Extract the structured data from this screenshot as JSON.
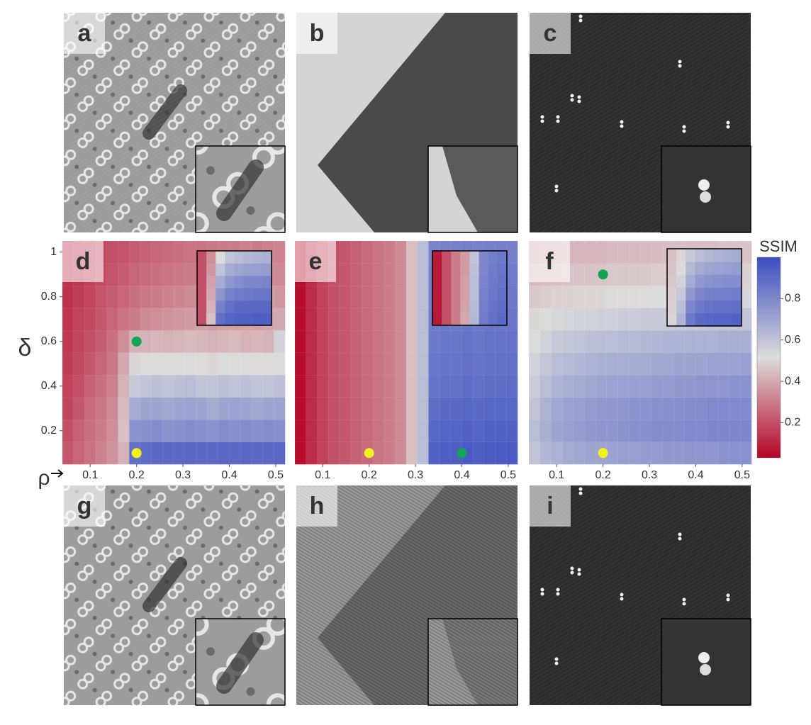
{
  "image_panels": [
    {
      "label": "a"
    },
    {
      "label": "b"
    },
    {
      "label": "c"
    },
    {
      "label": "g"
    },
    {
      "label": "h"
    },
    {
      "label": "i"
    }
  ],
  "colorbar": {
    "title": "SSIM",
    "clim": [
      0.03,
      1.0
    ],
    "ticks": [
      0.2,
      0.4,
      0.6,
      0.8
    ],
    "colormap": [
      "#b40426",
      "#dddcdc",
      "#3b4cc0"
    ]
  },
  "chart_data": [
    {
      "type": "heatmap",
      "label": "d",
      "ylabel": "δ",
      "xlabel": "ρ",
      "xlim": [
        0.04,
        0.52
      ],
      "ylim": [
        0.05,
        1.05
      ],
      "xticks": [
        0.1,
        0.2,
        0.3,
        0.4,
        0.5
      ],
      "yticks": [
        0.2,
        0.4,
        0.6,
        0.8,
        1
      ],
      "x": [
        0.052,
        0.076,
        0.1,
        0.124,
        0.148,
        0.172,
        0.196,
        0.22,
        0.244,
        0.268,
        0.292,
        0.316,
        0.34,
        0.364,
        0.388,
        0.412,
        0.436,
        0.46,
        0.484,
        0.508
      ],
      "y": [
        0.1,
        0.2,
        0.3,
        0.4,
        0.5,
        0.6,
        0.7,
        0.8,
        0.9,
        1.0
      ],
      "z": [
        [
          0.22,
          0.25,
          0.28,
          0.31,
          0.35,
          0.42,
          0.88,
          0.89,
          0.9,
          0.9,
          0.9,
          0.91,
          0.9,
          0.9,
          0.91,
          0.9,
          0.91,
          0.9,
          0.9,
          0.91
        ],
        [
          0.2,
          0.24,
          0.27,
          0.3,
          0.34,
          0.45,
          0.76,
          0.77,
          0.78,
          0.76,
          0.77,
          0.78,
          0.77,
          0.76,
          0.78,
          0.77,
          0.78,
          0.77,
          0.78,
          0.77
        ],
        [
          0.18,
          0.22,
          0.26,
          0.29,
          0.33,
          0.44,
          0.68,
          0.7,
          0.7,
          0.69,
          0.7,
          0.71,
          0.7,
          0.68,
          0.7,
          0.71,
          0.7,
          0.69,
          0.7,
          0.7
        ],
        [
          0.17,
          0.2,
          0.24,
          0.27,
          0.31,
          0.42,
          0.58,
          0.6,
          0.61,
          0.6,
          0.61,
          0.62,
          0.6,
          0.6,
          0.61,
          0.6,
          0.61,
          0.6,
          0.6,
          0.61
        ],
        [
          0.16,
          0.19,
          0.22,
          0.25,
          0.29,
          0.4,
          0.5,
          0.51,
          0.52,
          0.51,
          0.52,
          0.52,
          0.51,
          0.5,
          0.52,
          0.51,
          0.52,
          0.51,
          0.51,
          0.52
        ],
        [
          0.15,
          0.18,
          0.2,
          0.23,
          0.27,
          0.34,
          0.42,
          0.42,
          0.43,
          0.42,
          0.43,
          0.44,
          0.43,
          0.42,
          0.43,
          0.44,
          0.42,
          0.43,
          0.42,
          0.55
        ],
        [
          0.14,
          0.17,
          0.19,
          0.22,
          0.25,
          0.28,
          0.3,
          0.33,
          0.34,
          0.35,
          0.36,
          0.37,
          0.38,
          0.37,
          0.38,
          0.38,
          0.39,
          0.38,
          0.39,
          0.4
        ],
        [
          0.13,
          0.16,
          0.18,
          0.21,
          0.23,
          0.25,
          0.27,
          0.29,
          0.3,
          0.31,
          0.32,
          0.33,
          0.34,
          0.33,
          0.35,
          0.36,
          0.35,
          0.36,
          0.37,
          0.36
        ],
        [
          0.13,
          0.15,
          0.17,
          0.19,
          0.21,
          0.23,
          0.25,
          0.26,
          0.27,
          0.28,
          0.29,
          0.3,
          0.31,
          0.3,
          0.31,
          0.32,
          0.33,
          0.32,
          0.33,
          0.33
        ],
        [
          0.12,
          0.14,
          0.16,
          0.18,
          0.2,
          0.21,
          0.23,
          0.24,
          0.25,
          0.26,
          0.27,
          0.28,
          0.28,
          0.29,
          0.3,
          0.3,
          0.31,
          0.3,
          0.31,
          0.32
        ]
      ],
      "inset_z": [
        [
          0.2,
          0.45,
          0.88,
          0.92,
          0.93,
          0.93,
          0.94,
          0.94
        ],
        [
          0.2,
          0.42,
          0.82,
          0.88,
          0.9,
          0.9,
          0.91,
          0.91
        ],
        [
          0.2,
          0.4,
          0.75,
          0.82,
          0.84,
          0.85,
          0.86,
          0.86
        ],
        [
          0.2,
          0.38,
          0.68,
          0.75,
          0.78,
          0.8,
          0.8,
          0.81
        ],
        [
          0.2,
          0.36,
          0.6,
          0.68,
          0.7,
          0.72,
          0.72,
          0.73
        ],
        [
          0.2,
          0.34,
          0.52,
          0.6,
          0.62,
          0.64,
          0.65,
          0.66
        ]
      ],
      "markers": [
        {
          "x": 0.2,
          "y": 0.6,
          "color": "#13a555"
        },
        {
          "x": 0.2,
          "y": 0.1,
          "color": "#f4f01a"
        }
      ]
    },
    {
      "type": "heatmap",
      "label": "e",
      "xlim": [
        0.04,
        0.52
      ],
      "ylim": [
        0.05,
        1.05
      ],
      "xticks": [
        0.1,
        0.2,
        0.3,
        0.4,
        0.5
      ],
      "x": [
        0.052,
        0.076,
        0.1,
        0.124,
        0.148,
        0.172,
        0.196,
        0.22,
        0.244,
        0.268,
        0.292,
        0.316,
        0.34,
        0.364,
        0.388,
        0.412,
        0.436,
        0.46,
        0.484,
        0.508
      ],
      "y": [
        0.1,
        0.2,
        0.3,
        0.4,
        0.5,
        0.6,
        0.7,
        0.8,
        0.9,
        1.0
      ],
      "z": [
        [
          0.05,
          0.12,
          0.17,
          0.2,
          0.22,
          0.24,
          0.26,
          0.28,
          0.3,
          0.33,
          0.45,
          0.62,
          0.93,
          0.94,
          0.94,
          0.95,
          0.94,
          0.95,
          0.95,
          0.95
        ],
        [
          0.05,
          0.12,
          0.17,
          0.2,
          0.22,
          0.24,
          0.26,
          0.28,
          0.3,
          0.33,
          0.45,
          0.62,
          0.91,
          0.92,
          0.92,
          0.93,
          0.92,
          0.93,
          0.93,
          0.93
        ],
        [
          0.05,
          0.12,
          0.17,
          0.2,
          0.22,
          0.24,
          0.26,
          0.28,
          0.3,
          0.33,
          0.45,
          0.62,
          0.89,
          0.9,
          0.9,
          0.91,
          0.9,
          0.91,
          0.91,
          0.91
        ],
        [
          0.05,
          0.12,
          0.17,
          0.2,
          0.22,
          0.24,
          0.26,
          0.28,
          0.3,
          0.33,
          0.45,
          0.62,
          0.87,
          0.88,
          0.88,
          0.89,
          0.88,
          0.89,
          0.89,
          0.89
        ],
        [
          0.05,
          0.12,
          0.17,
          0.2,
          0.22,
          0.24,
          0.26,
          0.28,
          0.3,
          0.33,
          0.45,
          0.62,
          0.86,
          0.87,
          0.87,
          0.88,
          0.87,
          0.88,
          0.88,
          0.88
        ],
        [
          0.05,
          0.12,
          0.17,
          0.2,
          0.22,
          0.24,
          0.26,
          0.28,
          0.3,
          0.33,
          0.45,
          0.62,
          0.85,
          0.86,
          0.86,
          0.87,
          0.86,
          0.87,
          0.87,
          0.87
        ],
        [
          0.05,
          0.12,
          0.17,
          0.2,
          0.22,
          0.24,
          0.26,
          0.28,
          0.3,
          0.33,
          0.45,
          0.62,
          0.84,
          0.85,
          0.85,
          0.86,
          0.85,
          0.86,
          0.86,
          0.86
        ],
        [
          0.05,
          0.12,
          0.17,
          0.2,
          0.22,
          0.24,
          0.26,
          0.28,
          0.3,
          0.33,
          0.45,
          0.62,
          0.83,
          0.84,
          0.84,
          0.85,
          0.84,
          0.85,
          0.85,
          0.85
        ],
        [
          0.05,
          0.12,
          0.17,
          0.2,
          0.22,
          0.24,
          0.26,
          0.28,
          0.3,
          0.33,
          0.45,
          0.62,
          0.82,
          0.83,
          0.83,
          0.84,
          0.83,
          0.84,
          0.84,
          0.84
        ],
        [
          0.05,
          0.12,
          0.17,
          0.2,
          0.22,
          0.24,
          0.26,
          0.28,
          0.3,
          0.33,
          0.45,
          0.62,
          0.81,
          0.82,
          0.82,
          0.83,
          0.82,
          0.83,
          0.83,
          0.83
        ]
      ],
      "inset_z": [
        [
          0.08,
          0.2,
          0.3,
          0.4,
          0.64,
          0.84,
          0.88,
          0.9
        ],
        [
          0.08,
          0.2,
          0.3,
          0.39,
          0.63,
          0.83,
          0.87,
          0.89
        ],
        [
          0.08,
          0.2,
          0.3,
          0.38,
          0.62,
          0.82,
          0.86,
          0.88
        ],
        [
          0.08,
          0.2,
          0.3,
          0.38,
          0.62,
          0.81,
          0.85,
          0.87
        ],
        [
          0.08,
          0.2,
          0.3,
          0.37,
          0.61,
          0.8,
          0.84,
          0.86
        ],
        [
          0.08,
          0.2,
          0.3,
          0.37,
          0.6,
          0.8,
          0.83,
          0.85
        ]
      ],
      "markers": [
        {
          "x": 0.2,
          "y": 0.1,
          "color": "#f4f01a"
        },
        {
          "x": 0.4,
          "y": 0.1,
          "color": "#13a555"
        }
      ]
    },
    {
      "type": "heatmap",
      "label": "f",
      "xlim": [
        0.04,
        0.52
      ],
      "ylim": [
        0.05,
        1.05
      ],
      "xticks": [
        0.1,
        0.2,
        0.3,
        0.4,
        0.5
      ],
      "x": [
        0.052,
        0.076,
        0.1,
        0.124,
        0.148,
        0.172,
        0.196,
        0.22,
        0.244,
        0.268,
        0.292,
        0.316,
        0.34,
        0.364,
        0.388,
        0.412,
        0.436,
        0.46,
        0.484,
        0.508
      ],
      "y": [
        0.1,
        0.2,
        0.3,
        0.4,
        0.5,
        0.6,
        0.7,
        0.8,
        0.9,
        1.0
      ],
      "z": [
        [
          0.6,
          0.64,
          0.66,
          0.68,
          0.69,
          0.7,
          0.7,
          0.71,
          0.72,
          0.72,
          0.73,
          0.73,
          0.74,
          0.74,
          0.75,
          0.75,
          0.75,
          0.76,
          0.76,
          0.76
        ],
        [
          0.62,
          0.67,
          0.7,
          0.72,
          0.73,
          0.74,
          0.75,
          0.75,
          0.76,
          0.77,
          0.77,
          0.78,
          0.78,
          0.78,
          0.79,
          0.79,
          0.8,
          0.8,
          0.8,
          0.8
        ],
        [
          0.6,
          0.66,
          0.69,
          0.71,
          0.72,
          0.73,
          0.74,
          0.74,
          0.75,
          0.76,
          0.76,
          0.77,
          0.77,
          0.77,
          0.78,
          0.78,
          0.79,
          0.79,
          0.79,
          0.79
        ],
        [
          0.57,
          0.62,
          0.65,
          0.67,
          0.68,
          0.69,
          0.7,
          0.71,
          0.71,
          0.72,
          0.72,
          0.73,
          0.73,
          0.74,
          0.74,
          0.75,
          0.75,
          0.75,
          0.76,
          0.76
        ],
        [
          0.55,
          0.59,
          0.62,
          0.63,
          0.64,
          0.65,
          0.66,
          0.67,
          0.67,
          0.68,
          0.68,
          0.69,
          0.69,
          0.7,
          0.7,
          0.7,
          0.71,
          0.71,
          0.71,
          0.72
        ],
        [
          0.52,
          0.55,
          0.58,
          0.59,
          0.6,
          0.61,
          0.62,
          0.62,
          0.63,
          0.63,
          0.64,
          0.64,
          0.65,
          0.65,
          0.66,
          0.66,
          0.66,
          0.67,
          0.67,
          0.67
        ],
        [
          0.5,
          0.52,
          0.53,
          0.54,
          0.55,
          0.55,
          0.56,
          0.56,
          0.57,
          0.57,
          0.58,
          0.58,
          0.58,
          0.59,
          0.59,
          0.59,
          0.6,
          0.6,
          0.6,
          0.6
        ],
        [
          0.47,
          0.48,
          0.49,
          0.49,
          0.5,
          0.5,
          0.5,
          0.51,
          0.51,
          0.51,
          0.52,
          0.52,
          0.52,
          0.52,
          0.53,
          0.53,
          0.53,
          0.53,
          0.54,
          0.54
        ],
        [
          0.44,
          0.45,
          0.45,
          0.46,
          0.46,
          0.46,
          0.46,
          0.47,
          0.47,
          0.47,
          0.47,
          0.48,
          0.48,
          0.48,
          0.48,
          0.48,
          0.49,
          0.49,
          0.49,
          0.49
        ],
        [
          0.41,
          0.42,
          0.42,
          0.43,
          0.43,
          0.43,
          0.43,
          0.44,
          0.44,
          0.44,
          0.44,
          0.44,
          0.45,
          0.45,
          0.45,
          0.45,
          0.45,
          0.46,
          0.46,
          0.46
        ]
      ],
      "inset_z": [
        [
          0.5,
          0.65,
          0.85,
          0.9,
          0.91,
          0.92,
          0.92,
          0.93
        ],
        [
          0.49,
          0.62,
          0.8,
          0.85,
          0.87,
          0.88,
          0.88,
          0.89
        ],
        [
          0.48,
          0.58,
          0.74,
          0.8,
          0.82,
          0.83,
          0.83,
          0.84
        ],
        [
          0.47,
          0.55,
          0.68,
          0.74,
          0.76,
          0.77,
          0.78,
          0.78
        ],
        [
          0.46,
          0.52,
          0.63,
          0.68,
          0.7,
          0.71,
          0.72,
          0.73
        ],
        [
          0.45,
          0.5,
          0.58,
          0.62,
          0.64,
          0.66,
          0.67,
          0.68
        ]
      ],
      "markers": [
        {
          "x": 0.2,
          "y": 0.9,
          "color": "#13a555"
        },
        {
          "x": 0.2,
          "y": 0.1,
          "color": "#f4f01a"
        }
      ]
    }
  ]
}
